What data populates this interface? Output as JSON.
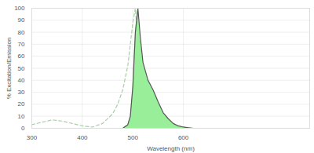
{
  "chart_data": {
    "type": "line",
    "x_label": "Wavelength (nm)",
    "y_label": "% Excitation/Emission",
    "x": [
      300,
      320,
      340,
      360,
      380,
      400,
      420,
      440,
      460,
      470,
      480,
      490,
      495,
      500,
      505,
      510,
      515,
      520,
      530,
      540,
      550,
      560,
      570,
      580,
      590,
      600,
      610,
      620,
      640
    ],
    "series": [
      {
        "type": "line",
        "line_style": "dashed",
        "color": "#a9cfa9",
        "values": [
          3,
          5,
          7,
          6,
          4,
          2,
          1,
          4,
          12,
          20,
          32,
          52,
          70,
          88,
          100,
          70,
          25,
          5,
          1,
          0,
          0,
          0,
          0,
          0,
          0,
          0,
          0,
          0,
          0
        ]
      },
      {
        "type": "area",
        "color": "#99ee99",
        "values": [
          null,
          null,
          null,
          null,
          null,
          null,
          null,
          null,
          null,
          null,
          0,
          3,
          10,
          35,
          80,
          100,
          75,
          55,
          40,
          32,
          22,
          13,
          8,
          4,
          2,
          1,
          0.5,
          0,
          0
        ]
      }
    ],
    "xlim": [
      300,
      850
    ],
    "xticks": [
      300,
      400,
      500,
      600
    ],
    "ylim": [
      0,
      100
    ],
    "yticks": [
      0,
      10,
      20,
      30,
      40,
      50,
      60,
      70,
      80,
      90,
      100
    ],
    "grid": true
  }
}
